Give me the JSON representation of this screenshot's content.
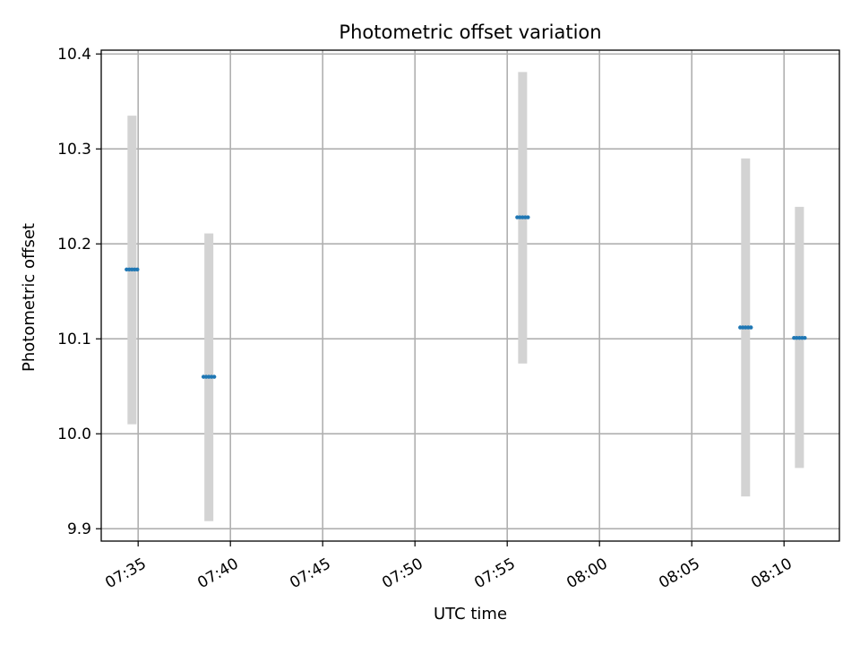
{
  "chart_data": {
    "type": "scatter",
    "title": "Photometric offset variation",
    "xlabel": "UTC time",
    "ylabel": "Photometric offset",
    "x_axis_kind": "time",
    "xlim": [
      "07:33:00",
      "08:13:00"
    ],
    "ylim": [
      9.887,
      10.404
    ],
    "x_ticks": [
      "07:35",
      "07:40",
      "07:45",
      "07:50",
      "07:55",
      "08:00",
      "08:05",
      "08:10"
    ],
    "y_ticks": [
      "9.9",
      "10.0",
      "10.1",
      "10.2",
      "10.3",
      "10.4"
    ],
    "y_tick_values": [
      9.9,
      10.0,
      10.1,
      10.2,
      10.3,
      10.4
    ],
    "grid": true,
    "colors": {
      "marker": "#1f77b4",
      "errorbar": "#d3d3d3"
    },
    "points": [
      {
        "x": "07:34:40",
        "y": 10.173,
        "ylow": 10.01,
        "yhigh": 10.335
      },
      {
        "x": "07:38:50",
        "y": 10.06,
        "ylow": 9.908,
        "yhigh": 10.211
      },
      {
        "x": "07:55:50",
        "y": 10.228,
        "ylow": 10.074,
        "yhigh": 10.381
      },
      {
        "x": "08:07:55",
        "y": 10.112,
        "ylow": 9.934,
        "yhigh": 10.29
      },
      {
        "x": "08:10:50",
        "y": 10.101,
        "ylow": 9.964,
        "yhigh": 10.239
      }
    ]
  }
}
